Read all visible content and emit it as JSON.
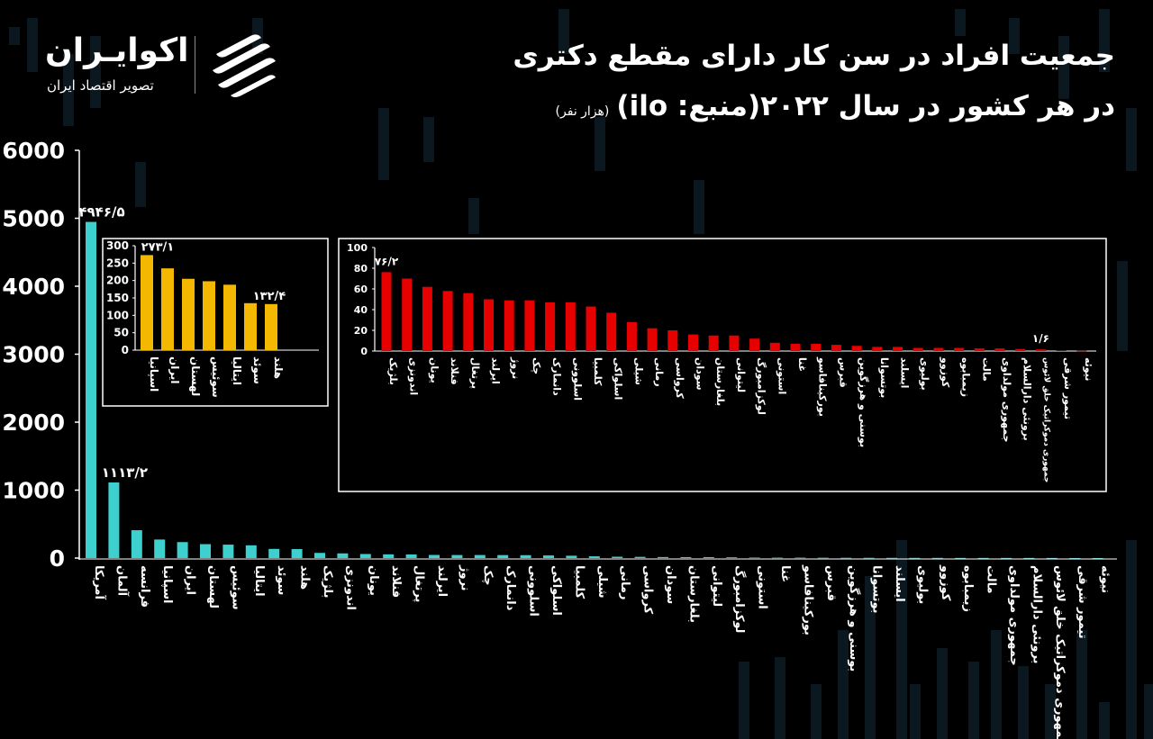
{
  "header": {
    "title_line1": "جمعیت افراد در سن کار دارای مقطع دکتری",
    "title_line2": "در هر کشور در سال ۲۰۲۲(منبع: ilo)",
    "title_unit": "(هزار نفر)"
  },
  "brand": {
    "name": "اکوایـران",
    "tagline": "تصویر اقتصاد ایران",
    "icon": "eco-iran-logo-mark"
  },
  "colors": {
    "background": "#000000",
    "main_bars": "#3ecfcf",
    "inset_left_bars": "#f5b800",
    "inset_right_bars": "#e60000",
    "text": "#ffffff"
  },
  "chart_data": [
    {
      "type": "bar",
      "ylim": [
        0,
        6000
      ],
      "yticks": [
        "6000",
        "5000",
        "4000",
        "3000",
        "2000",
        "1000",
        "0"
      ],
      "categories": [
        "آمریکا",
        "آلمان",
        "فرانسه",
        "اسپانیا",
        "ایران",
        "لهستان",
        "سوئیس",
        "ایتالیا",
        "سوئد",
        "هلند",
        "بلژیک",
        "اندونزی",
        "یونان",
        "فنلاند",
        "پرتغال",
        "ایرلند",
        "نروژ",
        "چک",
        "دانمارک",
        "اسلوونی",
        "اسلواکی",
        "کلمبیا",
        "شیلی",
        "رمانی",
        "کرواسی",
        "سودان",
        "بلغارستان",
        "لیتوانی",
        "لوکزامبورگ",
        "استونی",
        "غنا",
        "بورکینافاسو",
        "قبرس",
        "بوسنی و هرزگوین",
        "بوتسوانا",
        "ایسلند",
        "بولیوی",
        "کوزوو",
        "زیمبابوه",
        "مالت",
        "جمهوری مولداوی",
        "برونئی دارالسلام",
        "جمهوری دموکراتیک خلق لائوس",
        "تیمور شرقی",
        "نیوئه"
      ],
      "values": [
        4946.5,
        1113.2,
        410,
        273.1,
        235,
        205,
        198,
        188,
        135,
        132.4,
        76.2,
        69,
        60,
        55,
        53,
        46,
        45,
        45,
        44,
        43,
        39,
        35,
        26,
        20,
        18,
        15,
        14,
        14,
        11,
        7,
        6,
        6,
        5,
        4,
        3.5,
        3,
        2.5,
        2.5,
        2.2,
        2,
        1.9,
        1.8,
        1.6,
        0.5,
        0.3
      ],
      "data_labels": {
        "0": "۴۹۴۶/۵",
        "1": "۱۱۱۳/۲"
      }
    },
    {
      "type": "bar",
      "inset": "left",
      "ylim": [
        0,
        300
      ],
      "yticks": [
        "300",
        "250",
        "200",
        "150",
        "100",
        "50",
        "0"
      ],
      "categories": [
        "اسپانیا",
        "ایران",
        "لهستان",
        "سوئیس",
        "ایتالیا",
        "سوئد",
        "هلند"
      ],
      "values": [
        273.1,
        235,
        205,
        198,
        188,
        135,
        132.4
      ],
      "data_labels": {
        "0": "۲۷۳/۱",
        "6": "۱۳۲/۴"
      }
    },
    {
      "type": "bar",
      "inset": "right",
      "ylim": [
        0,
        100
      ],
      "yticks": [
        "100",
        "80",
        "60",
        "40",
        "20",
        "0"
      ],
      "categories": [
        "بلژیک",
        "اندونزی",
        "یونان",
        "فنلاند",
        "پرتغال",
        "ایرلند",
        "نروژ",
        "چک",
        "دانمارک",
        "اسلوونی",
        "کلمبیا",
        "اسلواکی",
        "شیلی",
        "رمانی",
        "کرواسی",
        "سودان",
        "بلغارستان",
        "لیتوانی",
        "لوکزامبورگ",
        "استونی",
        "غنا",
        "بورکینافاسو",
        "قبرس",
        "بوسنی و هرزگوین",
        "بوتسوانا",
        "ایسلند",
        "بولیوی",
        "کوزوو",
        "زیمبابوه",
        "مالت",
        "جمهوری مولداوی",
        "برونئی دارالسلام",
        "جمهوری دموکراتیک خلق لائوس",
        "تیمور شرقی",
        "نیوئه"
      ],
      "values": [
        76.2,
        70,
        62,
        58,
        56,
        50,
        49,
        49,
        47,
        47,
        43,
        37,
        28,
        22,
        20,
        16,
        15,
        15,
        12,
        8,
        7,
        7,
        6,
        5,
        4,
        4,
        3,
        3,
        3,
        2.5,
        2.5,
        2,
        1.6,
        0.6,
        0.3
      ],
      "data_labels": {
        "0": "۷۶/۲",
        "32": "۱/۶"
      }
    }
  ]
}
